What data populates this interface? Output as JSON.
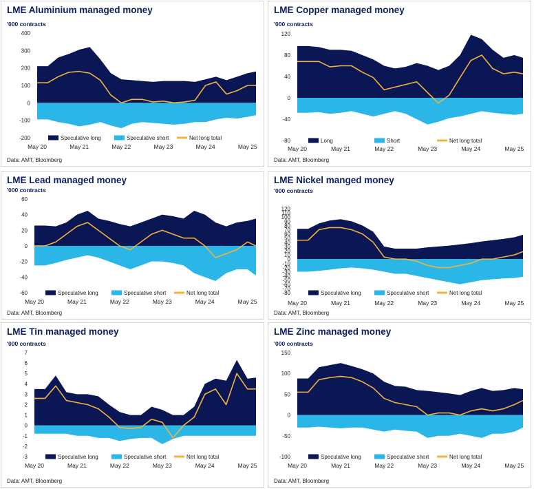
{
  "colors": {
    "long": "#0b1754",
    "short": "#2ab7e8",
    "net": "#f2b33d",
    "title": "#0d1f5c"
  },
  "chart_data": [
    {
      "type": "area",
      "title": "LME Aluminium managed money",
      "ylabel": "'000 contracts",
      "source": "Data: AMT, Bloomberg",
      "ylim": [
        -200,
        400
      ],
      "yticks": [
        -200,
        -100,
        0,
        100,
        200,
        300,
        400
      ],
      "xticks": [
        "May 20",
        "May 21",
        "May 22",
        "May 23",
        "May 24",
        "May 25"
      ],
      "x": [
        0,
        0.25,
        0.5,
        0.75,
        1,
        1.25,
        1.5,
        1.75,
        2,
        2.25,
        2.5,
        2.75,
        3,
        3.25,
        3.5,
        3.75,
        4,
        4.25,
        4.5,
        4.75,
        5,
        5.2
      ],
      "series": [
        {
          "name": "Speculative long",
          "values": [
            210,
            210,
            260,
            280,
            305,
            320,
            250,
            170,
            135,
            130,
            125,
            120,
            125,
            125,
            125,
            120,
            135,
            150,
            130,
            150,
            170,
            180
          ]
        },
        {
          "name": "Speculative short",
          "values": [
            -95,
            -95,
            -110,
            -120,
            -135,
            -125,
            -110,
            -130,
            -145,
            -120,
            -110,
            -115,
            -120,
            -125,
            -120,
            -110,
            -110,
            -95,
            -85,
            -90,
            -80,
            -70
          ]
        },
        {
          "name": "Net long total",
          "values": [
            115,
            115,
            150,
            175,
            180,
            170,
            130,
            45,
            0,
            20,
            20,
            5,
            10,
            0,
            5,
            15,
            100,
            120,
            50,
            70,
            100,
            100
          ]
        }
      ]
    },
    {
      "type": "area",
      "title": "LME Copper managed money",
      "ylabel": "'000 contracts",
      "source": "Data: AMT, Bloomberg",
      "ylim": [
        -80,
        120
      ],
      "yticks": [
        -80,
        -40,
        0,
        40,
        80,
        120
      ],
      "xticks": [
        "May 20",
        "May 21",
        "May 22",
        "May 23",
        "May 24",
        "May 25"
      ],
      "x": [
        0,
        0.25,
        0.5,
        0.75,
        1,
        1.25,
        1.5,
        1.75,
        2,
        2.25,
        2.5,
        2.75,
        3,
        3.25,
        3.5,
        3.75,
        4,
        4.25,
        4.5,
        4.75,
        5,
        5.2
      ],
      "series": [
        {
          "name": "Long",
          "values": [
            97,
            97,
            95,
            90,
            90,
            88,
            80,
            72,
            60,
            55,
            58,
            65,
            60,
            52,
            60,
            80,
            118,
            110,
            90,
            75,
            80,
            75
          ]
        },
        {
          "name": "Short",
          "values": [
            -28,
            -28,
            -27,
            -30,
            -28,
            -25,
            -30,
            -35,
            -30,
            -25,
            -30,
            -40,
            -50,
            -45,
            -38,
            -35,
            -30,
            -25,
            -28,
            -30,
            -32,
            -30
          ]
        },
        {
          "name": "Net long total",
          "values": [
            68,
            68,
            68,
            58,
            60,
            60,
            48,
            38,
            15,
            20,
            25,
            30,
            10,
            -10,
            5,
            38,
            70,
            80,
            55,
            45,
            48,
            45
          ]
        }
      ]
    },
    {
      "type": "area",
      "title": "LME Lead managed money",
      "ylabel": "'000 contracts",
      "source": "Data: AMT, Bloomberg",
      "ylim": [
        -60,
        60
      ],
      "yticks": [
        -60,
        -40,
        -20,
        0,
        20,
        40,
        60
      ],
      "xticks": [
        "May 20",
        "May 21",
        "May 22",
        "May 23",
        "May 24",
        "May 25"
      ],
      "x": [
        0,
        0.25,
        0.5,
        0.75,
        1,
        1.25,
        1.5,
        1.75,
        2,
        2.25,
        2.5,
        2.75,
        3,
        3.25,
        3.5,
        3.75,
        4,
        4.25,
        4.5,
        4.75,
        5,
        5.2
      ],
      "series": [
        {
          "name": "Speculative long",
          "values": [
            26,
            26,
            25,
            30,
            40,
            45,
            35,
            32,
            28,
            25,
            30,
            35,
            40,
            38,
            35,
            45,
            40,
            30,
            25,
            30,
            32,
            35
          ]
        },
        {
          "name": "Speculative short",
          "values": [
            -25,
            -25,
            -22,
            -18,
            -15,
            -12,
            -15,
            -20,
            -25,
            -30,
            -25,
            -20,
            -20,
            -22,
            -25,
            -35,
            -40,
            -45,
            -35,
            -30,
            -30,
            -38
          ]
        },
        {
          "name": "Net long total",
          "values": [
            0,
            0,
            5,
            15,
            25,
            30,
            20,
            10,
            0,
            -5,
            5,
            15,
            20,
            15,
            10,
            10,
            0,
            -15,
            -10,
            -5,
            5,
            0
          ]
        }
      ]
    },
    {
      "type": "area",
      "title": "LME Nickel manged money",
      "ylabel": "'000 contracts",
      "source": "Data: AMT, Bloomberg",
      "ylim": [
        -80,
        120
      ],
      "yticks": [
        -80,
        -70,
        -60,
        -50,
        -40,
        -30,
        -20,
        -10,
        0,
        10,
        20,
        30,
        40,
        50,
        60,
        70,
        80,
        90,
        100,
        110,
        120
      ],
      "xticks": [
        "May 20",
        "May 21",
        "May 22",
        "May 23",
        "May 24",
        "May 25"
      ],
      "x": [
        0,
        0.25,
        0.5,
        0.75,
        1,
        1.25,
        1.5,
        1.75,
        2,
        2.25,
        2.5,
        2.75,
        3,
        3.25,
        3.5,
        3.75,
        4,
        4.25,
        4.5,
        4.75,
        5,
        5.2
      ],
      "series": [
        {
          "name": "Speculative long",
          "values": [
            72,
            72,
            85,
            92,
            95,
            90,
            80,
            65,
            30,
            25,
            25,
            25,
            28,
            30,
            32,
            35,
            38,
            42,
            45,
            48,
            52,
            58
          ]
        },
        {
          "name": "Speculative short",
          "values": [
            -30,
            -30,
            -28,
            -25,
            -22,
            -20,
            -22,
            -25,
            -30,
            -35,
            -35,
            -40,
            -45,
            -50,
            -55,
            -60,
            -55,
            -50,
            -48,
            -46,
            -45,
            -42
          ]
        },
        {
          "name": "Net long total",
          "values": [
            45,
            45,
            70,
            75,
            75,
            70,
            60,
            40,
            5,
            0,
            0,
            -5,
            -15,
            -20,
            -20,
            -15,
            -10,
            0,
            0,
            5,
            10,
            18
          ]
        }
      ]
    },
    {
      "type": "area",
      "title": "LME Tin managed money",
      "ylabel": "'000 contracts",
      "source": "Data: AMT, Bloomberg",
      "ylim": [
        -3,
        7
      ],
      "yticks": [
        -3,
        -2,
        -1,
        0,
        1,
        2,
        3,
        4,
        5,
        6,
        7
      ],
      "xticks": [
        "May 20",
        "May 21",
        "May 22",
        "May 23",
        "May 24",
        "May 25"
      ],
      "x": [
        0,
        0.25,
        0.5,
        0.75,
        1,
        1.25,
        1.5,
        1.75,
        2,
        2.25,
        2.5,
        2.75,
        3,
        3.25,
        3.5,
        3.75,
        4,
        4.25,
        4.5,
        4.75,
        5,
        5.2
      ],
      "series": [
        {
          "name": "Speculative long",
          "values": [
            3.5,
            3.5,
            4.8,
            3.2,
            3.0,
            3.0,
            2.8,
            2.0,
            1.3,
            1.0,
            1.0,
            1.8,
            1.5,
            1.0,
            1.0,
            1.8,
            4.0,
            4.5,
            4.3,
            6.3,
            4.5,
            4.6
          ]
        },
        {
          "name": "Speculative short",
          "values": [
            -0.8,
            -0.8,
            -0.8,
            -0.8,
            -1.0,
            -1.0,
            -1.2,
            -1.2,
            -1.5,
            -1.3,
            -1.2,
            -1.2,
            -1.8,
            -1.3,
            -1.0,
            -1.0,
            -1.0,
            -1.0,
            -1.0,
            -1.0,
            -1.0,
            -1.0
          ]
        },
        {
          "name": "Net long total",
          "values": [
            2.6,
            2.6,
            3.8,
            2.4,
            2.2,
            2.0,
            1.6,
            0.8,
            -0.2,
            -0.3,
            -0.2,
            0.6,
            0.3,
            -1.2,
            0,
            0.8,
            3.0,
            3.5,
            2.0,
            5.0,
            3.5,
            3.5
          ]
        }
      ]
    },
    {
      "type": "area",
      "title": "LME Zinc managed money",
      "ylabel": "'000 contracts",
      "source": "Data: AMT, Bloomberg",
      "ylim": [
        -100,
        150
      ],
      "yticks": [
        -100,
        -50,
        0,
        50,
        100,
        150
      ],
      "xticks": [
        "May 20",
        "May 21",
        "May 22",
        "May 23",
        "May 24",
        "May 25"
      ],
      "x": [
        0,
        0.25,
        0.5,
        0.75,
        1,
        1.25,
        1.5,
        1.75,
        2,
        2.25,
        2.5,
        2.75,
        3,
        3.25,
        3.5,
        3.75,
        4,
        4.25,
        4.5,
        4.75,
        5,
        5.2
      ],
      "series": [
        {
          "name": "Speculative long",
          "values": [
            88,
            88,
            115,
            120,
            125,
            118,
            110,
            100,
            80,
            70,
            68,
            60,
            58,
            55,
            52,
            48,
            58,
            65,
            58,
            60,
            65,
            62
          ]
        },
        {
          "name": "Speculative short",
          "values": [
            -30,
            -30,
            -28,
            -30,
            -32,
            -30,
            -30,
            -35,
            -40,
            -35,
            -38,
            -40,
            -55,
            -50,
            -50,
            -45,
            -50,
            -55,
            -45,
            -45,
            -40,
            -30
          ]
        },
        {
          "name": "Net long total",
          "values": [
            55,
            55,
            85,
            90,
            93,
            90,
            80,
            65,
            40,
            30,
            25,
            20,
            0,
            5,
            5,
            0,
            10,
            15,
            10,
            15,
            25,
            35
          ]
        }
      ]
    }
  ]
}
